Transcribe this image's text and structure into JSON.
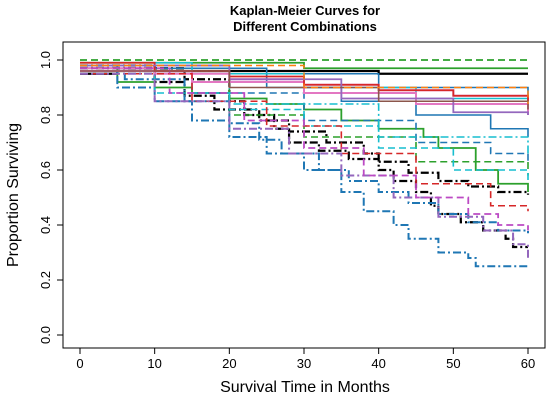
{
  "chart_data": {
    "type": "line",
    "subtype": "step",
    "title_lines": [
      "Kaplan-Meier Curves for",
      "Different Combinations"
    ],
    "xlabel": "Survival Time in Months",
    "ylabel": "Proportion Surviving",
    "xlim": [
      0,
      60
    ],
    "ylim": [
      0,
      1
    ],
    "x_ticks": [
      "0",
      "10",
      "20",
      "30",
      "40",
      "50",
      "60"
    ],
    "y_ticks": [
      "0.0",
      "0.2",
      "0.4",
      "0.6",
      "0.8",
      "1.0"
    ],
    "grid": false,
    "legend": "none",
    "series": [
      {
        "color": "#000000",
        "dash": "solid",
        "width": 2.2,
        "points": [
          [
            0,
            0.95
          ],
          [
            5,
            0.95
          ],
          [
            5,
            0.96
          ],
          [
            40,
            0.95
          ],
          [
            60,
            0.95
          ]
        ]
      },
      {
        "color": "#000000",
        "dash": "dashdot",
        "width": 2.2,
        "points": [
          [
            0,
            0.97
          ],
          [
            14,
            0.93
          ],
          [
            20,
            0.85
          ],
          [
            22,
            0.8
          ],
          [
            26,
            0.75
          ],
          [
            28,
            0.7
          ],
          [
            32,
            0.67
          ],
          [
            36,
            0.64
          ],
          [
            40,
            0.6
          ],
          [
            42,
            0.56
          ],
          [
            45,
            0.52
          ],
          [
            47,
            0.47
          ],
          [
            48,
            0.44
          ],
          [
            51,
            0.41
          ],
          [
            54,
            0.38
          ],
          [
            57,
            0.35
          ],
          [
            58,
            0.32
          ],
          [
            60,
            0.32
          ]
        ]
      },
      {
        "color": "#000000",
        "dash": "dashdot",
        "width": 2.2,
        "points": [
          [
            0,
            0.98
          ],
          [
            10,
            0.92
          ],
          [
            14,
            0.87
          ],
          [
            18,
            0.82
          ],
          [
            24,
            0.78
          ],
          [
            28,
            0.74
          ],
          [
            33,
            0.7
          ],
          [
            38,
            0.66
          ],
          [
            40,
            0.63
          ],
          [
            44,
            0.59
          ],
          [
            48,
            0.56
          ],
          [
            52,
            0.54
          ],
          [
            56,
            0.52
          ],
          [
            60,
            0.51
          ]
        ]
      },
      {
        "color": "#2ca02c",
        "dash": "dashed",
        "width": 1.8,
        "points": [
          [
            0,
            1.0
          ],
          [
            60,
            1.0
          ]
        ]
      },
      {
        "color": "#2ca02c",
        "dash": "solid",
        "width": 1.8,
        "points": [
          [
            0,
            0.97
          ],
          [
            5,
            0.92
          ],
          [
            10,
            0.9
          ],
          [
            15,
            0.88
          ],
          [
            20,
            0.86
          ],
          [
            25,
            0.84
          ],
          [
            30,
            0.82
          ],
          [
            35,
            0.78
          ],
          [
            40,
            0.75
          ],
          [
            46,
            0.72
          ],
          [
            48,
            0.68
          ],
          [
            53,
            0.6
          ],
          [
            56,
            0.55
          ],
          [
            60,
            0.52
          ]
        ]
      },
      {
        "color": "#2ca02c",
        "dash": "solid",
        "width": 1.8,
        "points": [
          [
            0,
            0.99
          ],
          [
            30,
            0.97
          ],
          [
            60,
            0.97
          ]
        ]
      },
      {
        "color": "#2ca02c",
        "dash": "dashed",
        "width": 1.6,
        "points": [
          [
            0,
            0.96
          ],
          [
            20,
            0.8
          ],
          [
            30,
            0.72
          ],
          [
            45,
            0.63
          ],
          [
            60,
            0.58
          ]
        ]
      },
      {
        "color": "#1f77b4",
        "dash": "dashdot",
        "width": 2.0,
        "points": [
          [
            0,
            0.98
          ],
          [
            5,
            0.9
          ],
          [
            10,
            0.85
          ],
          [
            15,
            0.78
          ],
          [
            20,
            0.72
          ],
          [
            25,
            0.66
          ],
          [
            30,
            0.6
          ],
          [
            35,
            0.52
          ],
          [
            38,
            0.45
          ],
          [
            42,
            0.4
          ],
          [
            44,
            0.35
          ],
          [
            48,
            0.3
          ],
          [
            52,
            0.28
          ],
          [
            53,
            0.25
          ],
          [
            60,
            0.25
          ]
        ]
      },
      {
        "color": "#1f77b4",
        "dash": "dashdot",
        "width": 2.0,
        "points": [
          [
            0,
            0.96
          ],
          [
            6,
            0.93
          ],
          [
            14,
            0.85
          ],
          [
            20,
            0.77
          ],
          [
            24,
            0.71
          ],
          [
            27,
            0.66
          ],
          [
            32,
            0.6
          ],
          [
            36,
            0.56
          ],
          [
            40,
            0.52
          ],
          [
            44,
            0.48
          ],
          [
            48,
            0.44
          ],
          [
            52,
            0.41
          ],
          [
            56,
            0.38
          ],
          [
            60,
            0.37
          ]
        ]
      },
      {
        "color": "#1f77b4",
        "dash": "solid",
        "width": 1.6,
        "points": [
          [
            0,
            0.98
          ],
          [
            20,
            0.95
          ],
          [
            40,
            0.9
          ],
          [
            60,
            0.86
          ]
        ]
      },
      {
        "color": "#1f77b4",
        "dash": "solid",
        "width": 1.6,
        "points": [
          [
            0,
            0.97
          ],
          [
            25,
            0.9
          ],
          [
            35,
            0.85
          ],
          [
            45,
            0.8
          ],
          [
            55,
            0.75
          ],
          [
            60,
            0.72
          ]
        ]
      },
      {
        "color": "#1f77b4",
        "dash": "dashed",
        "width": 1.6,
        "points": [
          [
            0,
            0.95
          ],
          [
            15,
            0.88
          ],
          [
            30,
            0.78
          ],
          [
            45,
            0.7
          ],
          [
            55,
            0.66
          ],
          [
            60,
            0.62
          ]
        ]
      },
      {
        "color": "#17becf",
        "dash": "solid",
        "width": 1.6,
        "points": [
          [
            0,
            0.99
          ],
          [
            15,
            0.95
          ],
          [
            30,
            0.9
          ],
          [
            45,
            0.86
          ],
          [
            60,
            0.85
          ]
        ]
      },
      {
        "color": "#17becf",
        "dash": "dashed",
        "width": 1.6,
        "points": [
          [
            0,
            0.96
          ],
          [
            10,
            0.88
          ],
          [
            20,
            0.82
          ],
          [
            30,
            0.76
          ],
          [
            40,
            0.68
          ],
          [
            50,
            0.6
          ],
          [
            60,
            0.55
          ]
        ]
      },
      {
        "color": "#17becf",
        "dash": "dashdot",
        "width": 1.6,
        "points": [
          [
            0,
            0.98
          ],
          [
            20,
            0.84
          ],
          [
            40,
            0.72
          ],
          [
            60,
            0.66
          ]
        ]
      },
      {
        "color": "#e377c2",
        "dash": "solid",
        "width": 2.0,
        "points": [
          [
            0,
            0.97
          ],
          [
            10,
            0.95
          ],
          [
            20,
            0.93
          ],
          [
            30,
            0.91
          ],
          [
            40,
            0.89
          ],
          [
            50,
            0.87
          ],
          [
            60,
            0.86
          ]
        ]
      },
      {
        "color": "#e377c2",
        "dash": "solid",
        "width": 2.0,
        "points": [
          [
            0,
            0.96
          ],
          [
            15,
            0.92
          ],
          [
            30,
            0.88
          ],
          [
            45,
            0.84
          ],
          [
            60,
            0.8
          ]
        ]
      },
      {
        "color": "#d62728",
        "dash": "solid",
        "width": 1.8,
        "points": [
          [
            0,
            0.99
          ],
          [
            10,
            0.96
          ],
          [
            20,
            0.94
          ],
          [
            30,
            0.91
          ],
          [
            40,
            0.89
          ],
          [
            50,
            0.87
          ],
          [
            60,
            0.85
          ]
        ]
      },
      {
        "color": "#d62728",
        "dash": "dashed",
        "width": 1.6,
        "points": [
          [
            0,
            0.95
          ],
          [
            15,
            0.85
          ],
          [
            25,
            0.76
          ],
          [
            35,
            0.66
          ],
          [
            45,
            0.55
          ],
          [
            55,
            0.47
          ],
          [
            60,
            0.45
          ]
        ]
      },
      {
        "color": "#9467bd",
        "dash": "solid",
        "width": 1.8,
        "points": [
          [
            0,
            0.98
          ],
          [
            20,
            0.93
          ],
          [
            35,
            0.86
          ],
          [
            50,
            0.81
          ],
          [
            60,
            0.8
          ]
        ]
      },
      {
        "color": "#9467bd",
        "dash": "dashdot",
        "width": 2.0,
        "points": [
          [
            0,
            0.95
          ],
          [
            10,
            0.85
          ],
          [
            20,
            0.75
          ],
          [
            28,
            0.66
          ],
          [
            35,
            0.58
          ],
          [
            42,
            0.5
          ],
          [
            48,
            0.43
          ],
          [
            54,
            0.38
          ],
          [
            58,
            0.33
          ],
          [
            60,
            0.28
          ]
        ]
      },
      {
        "color": "#bc4ac4",
        "dash": "dashed",
        "width": 1.8,
        "points": [
          [
            0,
            0.97
          ],
          [
            12,
            0.88
          ],
          [
            22,
            0.78
          ],
          [
            30,
            0.68
          ],
          [
            38,
            0.58
          ],
          [
            45,
            0.5
          ],
          [
            52,
            0.44
          ],
          [
            56,
            0.4
          ],
          [
            60,
            0.38
          ]
        ]
      },
      {
        "color": "#8c564b",
        "dash": "solid",
        "width": 1.6,
        "points": [
          [
            0,
            0.96
          ],
          [
            20,
            0.9
          ],
          [
            40,
            0.85
          ],
          [
            60,
            0.82
          ]
        ]
      },
      {
        "color": "#ff7f0e",
        "dash": "dashed",
        "width": 1.4,
        "points": [
          [
            0,
            0.98
          ],
          [
            30,
            0.9
          ],
          [
            60,
            0.84
          ]
        ]
      }
    ]
  }
}
